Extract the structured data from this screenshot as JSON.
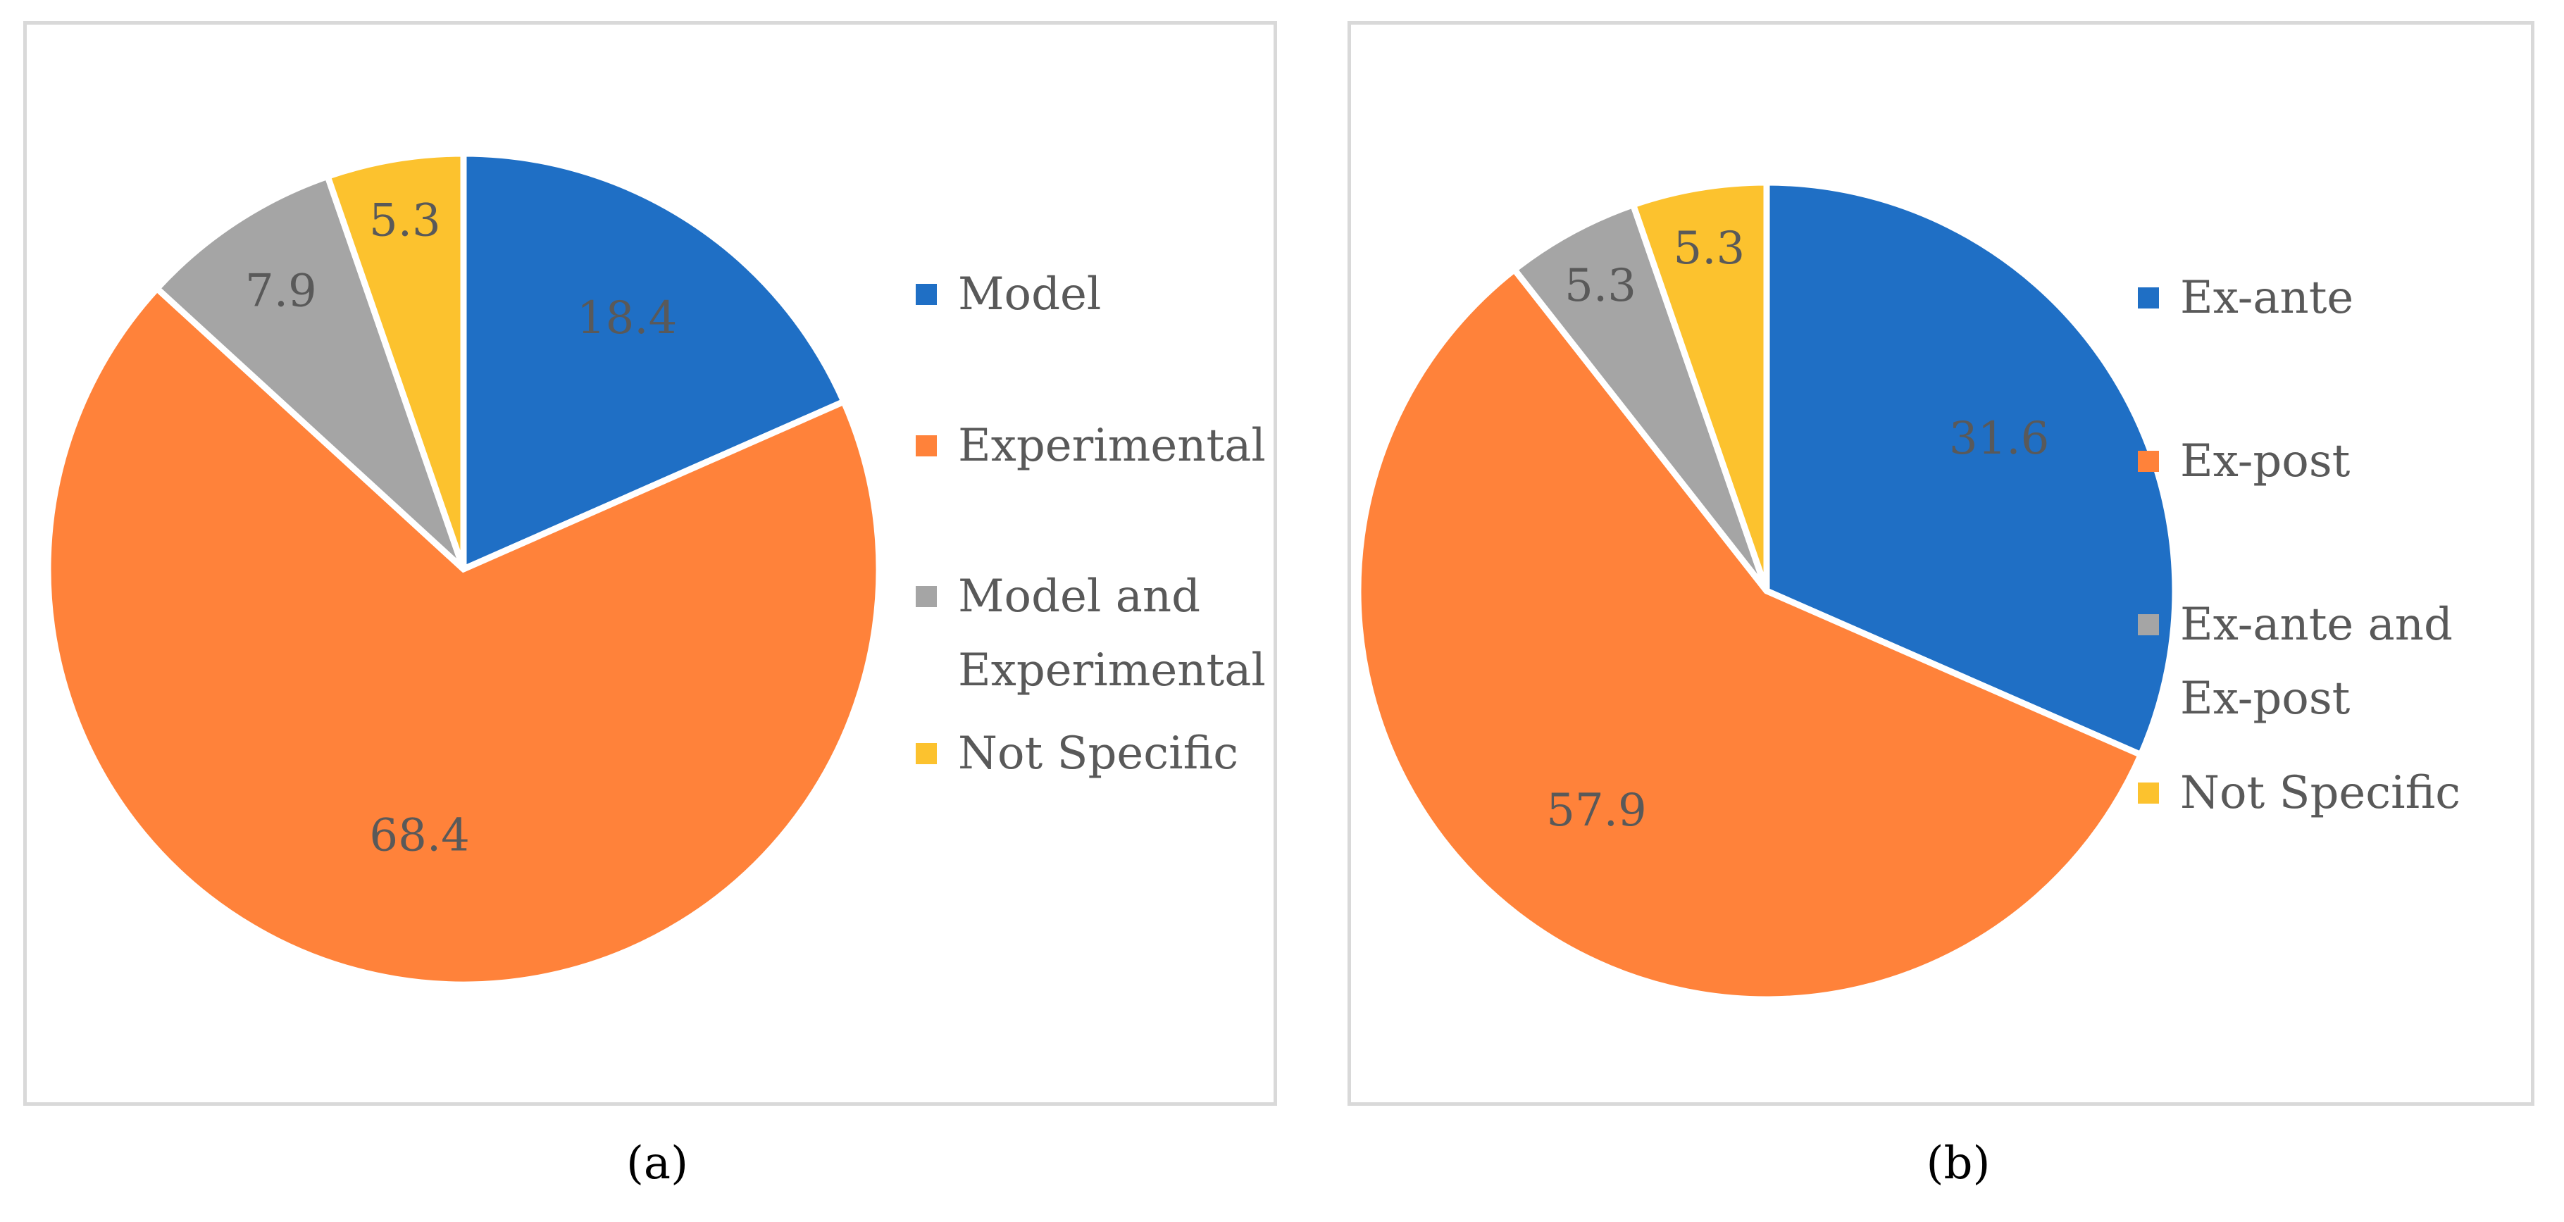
{
  "chart_data": [
    {
      "type": "pie",
      "panel": "a",
      "caption": "(a)",
      "slices": [
        {
          "label": "Model",
          "value": 18.4,
          "value_label": "18.4",
          "color": "#1f6fc5",
          "legend_lines": [
            "Model"
          ]
        },
        {
          "label": "Experimental",
          "value": 68.4,
          "value_label": "68.4",
          "color": "#ff823a",
          "legend_lines": [
            "Experimental"
          ]
        },
        {
          "label": "Model and Experimental",
          "value": 7.9,
          "value_label": "7.9",
          "color": "#a5a5a5",
          "legend_lines": [
            "Model and",
            "Experimental"
          ]
        },
        {
          "label": "Not Specific",
          "value": 5.3,
          "value_label": "5.3",
          "color": "#fcc22e",
          "legend_lines": [
            "Not Specific"
          ]
        }
      ],
      "legend_position": "right",
      "start_angle_deg": 0,
      "direction": "clockwise"
    },
    {
      "type": "pie",
      "panel": "b",
      "caption": "(b)",
      "slices": [
        {
          "label": "Ex-ante",
          "value": 31.6,
          "value_label": "31.6",
          "color": "#1f6fc5",
          "legend_lines": [
            "Ex-ante"
          ]
        },
        {
          "label": "Ex-post",
          "value": 57.9,
          "value_label": "57.9",
          "color": "#ff823a",
          "legend_lines": [
            "Ex-post"
          ]
        },
        {
          "label": "Ex-ante and Ex-post",
          "value": 5.3,
          "value_label": "5.3",
          "color": "#a5a5a5",
          "legend_lines": [
            "Ex-ante and",
            "Ex-post"
          ]
        },
        {
          "label": "Not Specific",
          "value": 5.3,
          "value_label": "5.3",
          "color": "#fcc22e",
          "legend_lines": [
            "Not Specific"
          ]
        }
      ],
      "legend_position": "right",
      "start_angle_deg": 0,
      "direction": "clockwise"
    }
  ],
  "colors": {
    "label_text": "#595959",
    "border": "#d9d9d9",
    "slice_stroke": "#ffffff"
  }
}
